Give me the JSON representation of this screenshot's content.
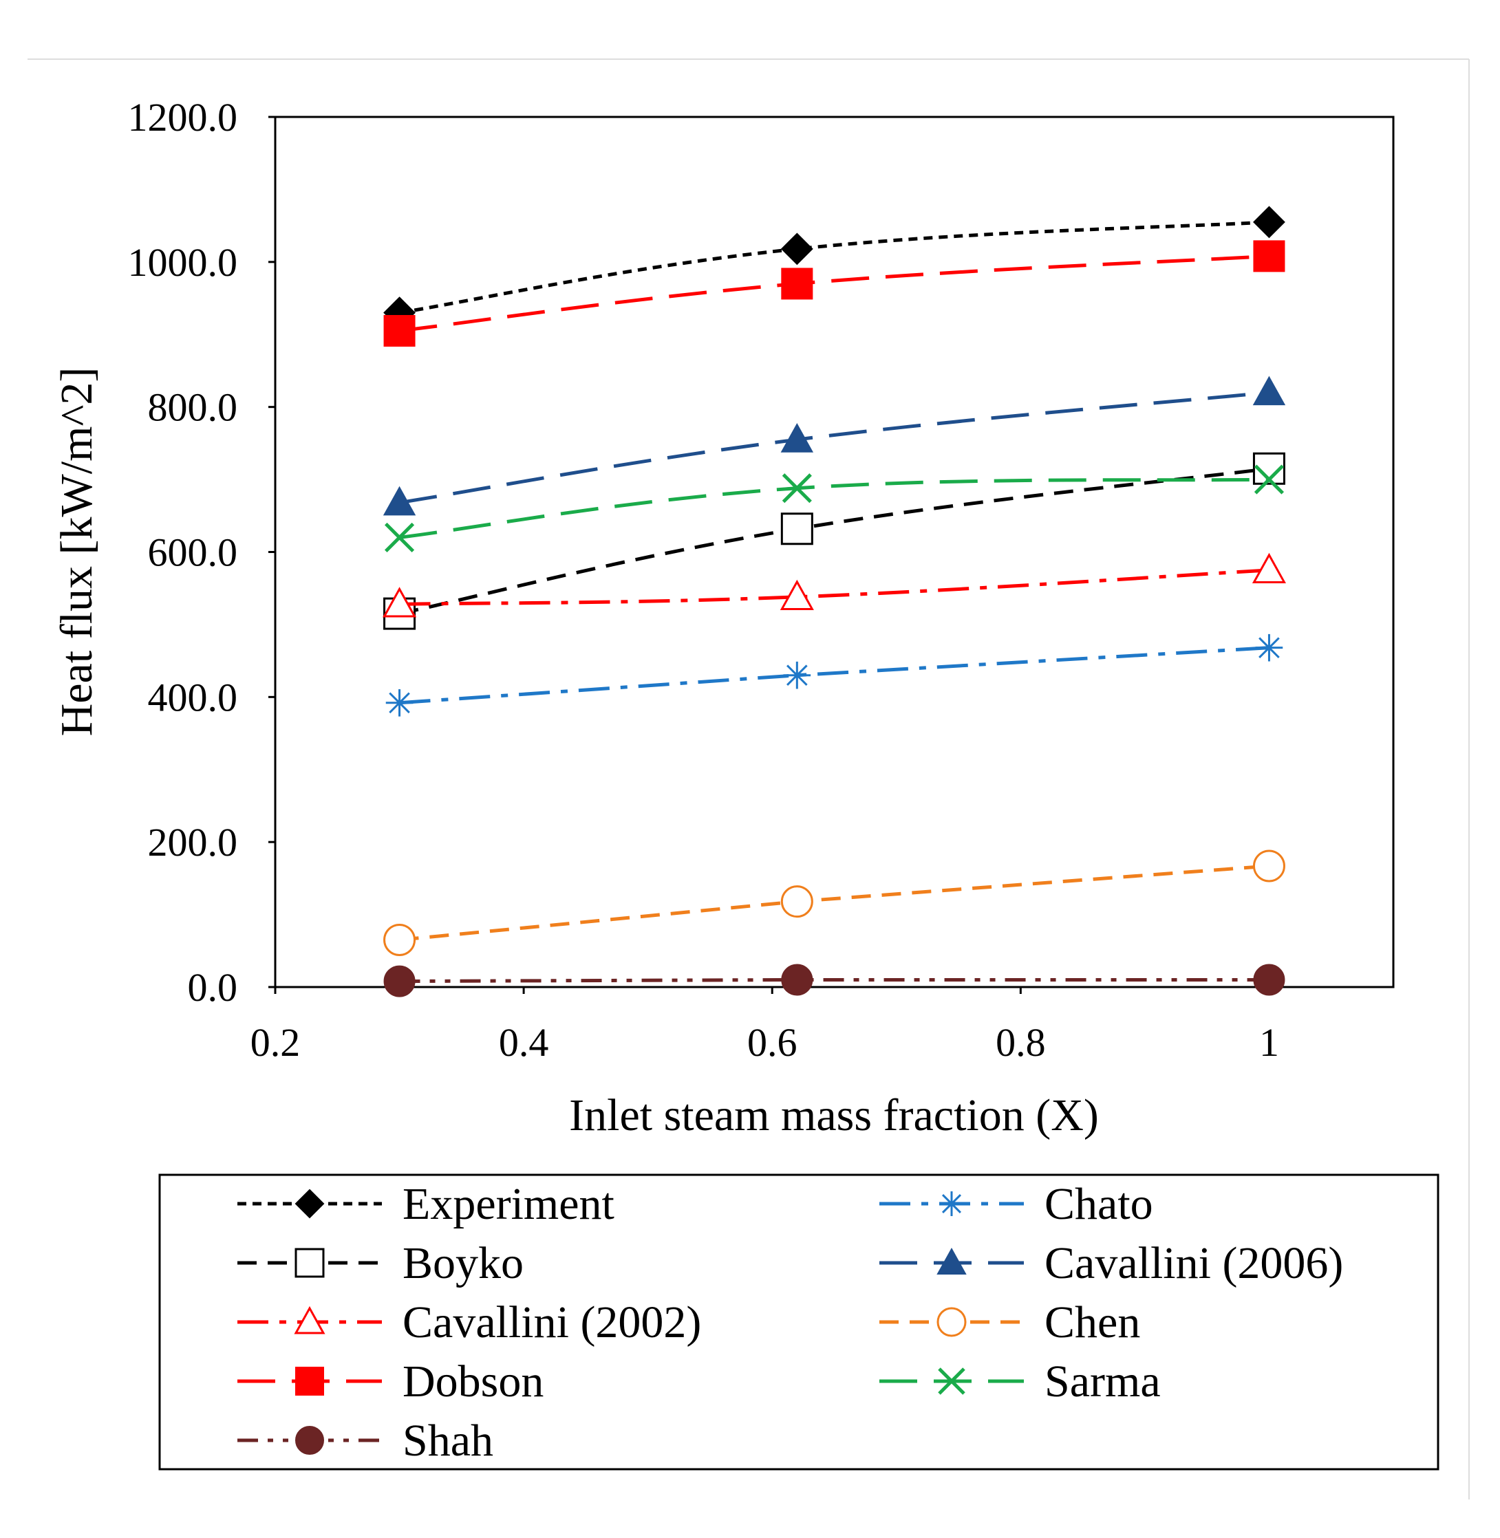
{
  "chart_data": {
    "type": "line",
    "title": "",
    "xlabel": "Inlet steam mass fraction (X)",
    "ylabel": "Heat flux [kW/m^2]",
    "xlim": [
      0.2,
      1.1
    ],
    "ylim": [
      0,
      1200
    ],
    "x_ticks": [
      0.2,
      0.4,
      0.6,
      0.8,
      1.0
    ],
    "x_tick_labels": [
      "0.2",
      "0.4",
      "0.6",
      "0.8",
      "1"
    ],
    "y_ticks": [
      0,
      200,
      400,
      600,
      800,
      1000,
      1200
    ],
    "y_tick_labels": [
      "0.0",
      "200.0",
      "400.0",
      "600.0",
      "800.0",
      "1000.0",
      "1200.0"
    ],
    "grid": false,
    "legend_position": "bottom",
    "x": [
      0.3,
      0.62,
      1.0
    ],
    "series": [
      {
        "name": "Experiment",
        "values": [
          930,
          1018,
          1055
        ],
        "color": "#000000",
        "marker": "diamond-filled",
        "dash": "dotted",
        "smooth": true
      },
      {
        "name": "Boyko",
        "values": [
          515,
          632,
          715
        ],
        "color": "#000000",
        "marker": "square-open",
        "dash": "dashed",
        "smooth": true
      },
      {
        "name": "Cavallini (2002)",
        "values": [
          528,
          538,
          575
        ],
        "color": "#ff0000",
        "marker": "triangle-open",
        "dash": "dashdot",
        "smooth": true
      },
      {
        "name": "Dobson",
        "values": [
          905,
          970,
          1008
        ],
        "color": "#ff0000",
        "marker": "square-filled",
        "dash": "longdash",
        "smooth": true
      },
      {
        "name": "Shah",
        "values": [
          8,
          10,
          10
        ],
        "color": "#6b2424",
        "marker": "circle-filled",
        "dash": "dashdotdot",
        "smooth": false
      },
      {
        "name": "Chato",
        "values": [
          392,
          430,
          468
        ],
        "color": "#1f78c8",
        "marker": "asterisk",
        "dash": "dashdot",
        "smooth": false
      },
      {
        "name": "Cavallini (2006)",
        "values": [
          668,
          755,
          820
        ],
        "color": "#1f4e8c",
        "marker": "triangle-filled",
        "dash": "longdash",
        "smooth": true
      },
      {
        "name": "Chen",
        "values": [
          65,
          118,
          167
        ],
        "color": "#f07f1c",
        "marker": "circle-open",
        "dash": "dashed",
        "smooth": false
      },
      {
        "name": "Sarma",
        "values": [
          620,
          688,
          700
        ],
        "color": "#1aab4a",
        "marker": "x",
        "dash": "longdash",
        "smooth": true
      }
    ],
    "legend_left_column": [
      "Experiment",
      "Boyko",
      "Cavallini (2002)",
      "Dobson",
      "Shah"
    ],
    "legend_right_column": [
      "Chato",
      "Cavallini (2006)",
      "Chen",
      "Sarma"
    ]
  }
}
